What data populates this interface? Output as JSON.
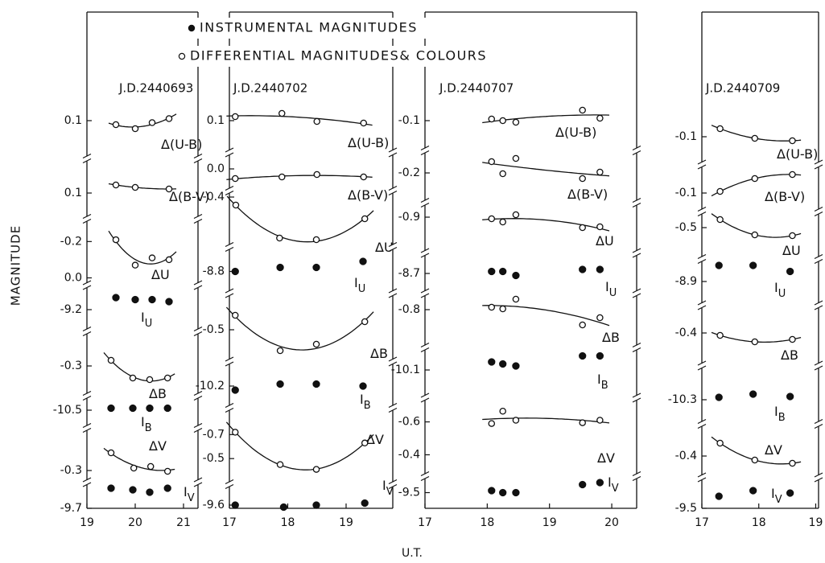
{
  "xlabel": "U.T.",
  "ylabel": "MAGNITUDE",
  "legend": [
    {
      "name": "INSTRUMENTAL MAGNITUDES",
      "marker": "filled"
    },
    {
      "name": "DIFFERENTIAL MAGNITUDES& COLOURS",
      "marker": "open"
    }
  ],
  "chart_data": [
    {
      "type": "scatter",
      "title": "J.D.2440693",
      "xlim": [
        19,
        21.3
      ],
      "xticks": [
        19,
        20,
        21
      ],
      "strips": [
        {
          "label": "Δ(U-B)",
          "marker": "open",
          "ylim": [
            0.05,
            0.18
          ],
          "yticks": [
            0.1
          ],
          "x": [
            19.6,
            20.0,
            20.35,
            20.7
          ],
          "values": [
            0.11,
            0.12,
            0.105,
            0.095
          ]
        },
        {
          "label": "Δ(B-V)",
          "marker": "open",
          "ylim": [
            0.03,
            0.15
          ],
          "yticks": [
            0.1
          ],
          "x": [
            19.6,
            20.0,
            20.7
          ],
          "values": [
            0.08,
            0.086,
            0.09
          ]
        },
        {
          "label": "ΔU",
          "marker": "open",
          "ylim": [
            -0.29,
            0.02
          ],
          "yticks": [
            -0.2,
            {
              "value": 0,
              "label": "0.0"
            }
          ],
          "x": [
            19.6,
            20.0,
            20.35,
            20.7
          ],
          "values": [
            -0.21,
            -0.07,
            -0.11,
            -0.1
          ]
        },
        {
          "label": "I",
          "sub": "U",
          "marker": "filled",
          "ylim": [
            -9.25,
            -9.16
          ],
          "yticks": [
            -9.2
          ],
          "x": [
            19.6,
            20.0,
            20.35,
            20.7
          ],
          "values": [
            -9.23,
            -9.225,
            -9.225,
            -9.22
          ]
        },
        {
          "label": "ΔB",
          "marker": "open",
          "ylim": [
            -0.37,
            -0.23
          ],
          "yticks": [
            -0.3
          ],
          "x": [
            19.5,
            19.95,
            20.3,
            20.67
          ],
          "values": [
            -0.314,
            -0.27,
            -0.266,
            -0.27
          ]
        },
        {
          "label": "I",
          "sub": "B",
          "marker": "filled",
          "ylim": [
            -10.53,
            -10.48
          ],
          "yticks": [
            -10.5
          ],
          "x": [
            19.5,
            19.95,
            20.3,
            20.67
          ],
          "values": [
            -10.505,
            -10.505,
            -10.505,
            -10.505
          ]
        },
        {
          "label": "ΔV",
          "marker": "open",
          "ylim": [
            -0.38,
            -0.27
          ],
          "yticks": [
            -0.3
          ],
          "x": [
            19.5,
            19.97,
            20.32,
            20.67
          ],
          "values": [
            -0.344,
            -0.306,
            -0.31,
            -0.298
          ]
        },
        {
          "label": "I",
          "sub": "V",
          "marker": "filled",
          "ylim": [
            -9.764,
            -9.7
          ],
          "yticks": [
            -9.7
          ],
          "x": [
            19.5,
            19.95,
            20.3,
            20.67
          ],
          "values": [
            -9.75,
            -9.746,
            -9.74,
            -9.75
          ]
        }
      ]
    },
    {
      "type": "scatter",
      "title": "J.D.2440702",
      "xlim": [
        17,
        19.8
      ],
      "xticks": [
        17,
        18,
        19
      ],
      "strips": [
        {
          "label": "Δ(U-B)",
          "marker": "open",
          "ylim": [
            0.05,
            0.17
          ],
          "yticks": [
            0.1
          ],
          "x": [
            17.1,
            17.9,
            18.5,
            19.3
          ],
          "values": [
            0.09,
            0.082,
            0.102,
            0.106
          ]
        },
        {
          "label": "Δ(B-V)",
          "marker": "open",
          "ylim": [
            -0.03,
            0.05
          ],
          "yticks": [
            {
              "value": 0,
              "label": "0.0"
            }
          ],
          "x": [
            17.1,
            17.9,
            18.5,
            19.3
          ],
          "values": [
            0.024,
            0.02,
            0.014,
            0.02
          ]
        },
        {
          "label": "ΔU",
          "marker": "open",
          "ylim": [
            -0.41,
            -0.29
          ],
          "yticks": [
            -0.4
          ],
          "x": [
            17.11,
            17.86,
            18.49,
            19.32
          ],
          "values": [
            -0.38,
            -0.298,
            -0.294,
            -0.346
          ]
        },
        {
          "label": "I",
          "sub": "U",
          "marker": "filled",
          "ylim": [
            -8.845,
            -8.765
          ],
          "yticks": [
            -8.8
          ],
          "x": [
            17.1,
            17.87,
            18.49,
            19.29
          ],
          "values": [
            -8.8,
            -8.81,
            -8.81,
            -8.825
          ]
        },
        {
          "label": "ΔB",
          "marker": "open",
          "ylim": [
            -0.57,
            -0.44
          ],
          "yticks": [
            -0.5
          ],
          "x": [
            17.1,
            17.87,
            18.49,
            19.32
          ],
          "values": [
            -0.536,
            -0.448,
            -0.464,
            -0.52
          ]
        },
        {
          "label": "I",
          "sub": "B",
          "marker": "filled",
          "ylim": [
            -10.24,
            -10.16
          ],
          "yticks": [
            -10.2
          ],
          "x": [
            17.1,
            17.87,
            18.49,
            19.29
          ],
          "values": [
            -10.19,
            -10.205,
            -10.205,
            -10.2
          ]
        },
        {
          "label": "ΔV",
          "marker": "open",
          "ylim": [
            -0.87,
            -0.3
          ],
          "yticks": [
            -0.7,
            -0.5
          ],
          "x": [
            17.1,
            17.87,
            18.49,
            19.32
          ],
          "values": [
            -0.72,
            -0.45,
            -0.41,
            -0.63
          ]
        },
        {
          "label": "I",
          "sub": "V",
          "marker": "filled",
          "ylim": [
            -9.646,
            -9.592
          ],
          "yticks": [
            -9.6
          ],
          "x": [
            17.1,
            17.93,
            18.49,
            19.32
          ],
          "values": [
            -9.6,
            -9.595,
            -9.6,
            -9.605
          ]
        }
      ]
    },
    {
      "type": "scatter",
      "title": "J.D.2440707",
      "xlim": [
        17,
        20.4
      ],
      "xticks": [
        17,
        18,
        19,
        20
      ],
      "strips": [
        {
          "label": "Δ(U-B)",
          "marker": "open",
          "ylim": [
            -0.15,
            -0.03
          ],
          "yticks": [
            -0.1
          ],
          "x": [
            18.07,
            18.25,
            18.46,
            19.53,
            19.81
          ],
          "values": [
            -0.104,
            -0.1,
            -0.096,
            -0.126,
            -0.106
          ]
        },
        {
          "label": "Δ(B-V)",
          "marker": "open",
          "ylim": [
            -0.25,
            -0.13
          ],
          "yticks": [
            -0.2
          ],
          "x": [
            18.07,
            18.25,
            18.46,
            19.53,
            19.81
          ],
          "values": [
            -0.228,
            -0.198,
            -0.236,
            -0.186,
            -0.202
          ]
        },
        {
          "label": "ΔU",
          "marker": "open",
          "ylim": [
            -0.93,
            -0.82
          ],
          "yticks": [
            -0.9
          ],
          "x": [
            18.07,
            18.25,
            18.46,
            19.53,
            19.81
          ],
          "values": [
            -0.896,
            -0.888,
            -0.906,
            -0.874,
            -0.876
          ]
        },
        {
          "label": "I",
          "sub": "U",
          "marker": "filled",
          "ylim": [
            -8.74,
            -8.65
          ],
          "yticks": [
            -8.7
          ],
          "x": [
            18.07,
            18.25,
            18.46,
            19.53,
            19.81
          ],
          "values": [
            -8.705,
            -8.705,
            -8.695,
            -8.71,
            -8.71
          ]
        },
        {
          "label": "ΔB",
          "marker": "open",
          "ylim": [
            -0.84,
            -0.71
          ],
          "yticks": [
            -0.8
          ],
          "x": [
            18.07,
            18.25,
            18.46,
            19.53,
            19.81
          ],
          "values": [
            -0.806,
            -0.802,
            -0.826,
            -0.762,
            -0.78
          ]
        },
        {
          "label": "I",
          "sub": "B",
          "marker": "filled",
          "ylim": [
            -10.15,
            -10.04
          ],
          "yticks": [
            -10.1
          ],
          "x": [
            18.07,
            18.25,
            18.46,
            19.53,
            19.81
          ],
          "values": [
            -10.12,
            -10.115,
            -10.11,
            -10.135,
            -10.135
          ]
        },
        {
          "label": "ΔV",
          "marker": "open",
          "ylim": [
            -0.72,
            -0.28
          ],
          "yticks": [
            -0.6,
            -0.4
          ],
          "x": [
            18.07,
            18.25,
            18.46,
            19.53,
            19.81
          ],
          "values": [
            -0.59,
            -0.665,
            -0.61,
            -0.595,
            -0.61
          ]
        },
        {
          "label": "I",
          "sub": "V",
          "marker": "filled",
          "ylim": [
            -9.535,
            -9.465
          ],
          "yticks": [
            -9.5
          ],
          "x": [
            18.07,
            18.25,
            18.46,
            19.53,
            19.81
          ],
          "values": [
            -9.505,
            -9.5,
            -9.5,
            -9.52,
            -9.525
          ]
        }
      ]
    },
    {
      "type": "scatter",
      "title": "J.D.2440709",
      "xlim": [
        17,
        19.05
      ],
      "xticks": [
        17,
        18,
        19
      ],
      "strips": [
        {
          "label": "Δ(U-B)",
          "marker": "open",
          "ylim": [
            -0.16,
            -0.04
          ],
          "yticks": [
            -0.1
          ],
          "x": [
            17.32,
            17.93,
            18.59
          ],
          "values": [
            -0.12,
            -0.096,
            -0.09
          ]
        },
        {
          "label": "Δ(B-V)",
          "marker": "open",
          "ylim": [
            -0.16,
            -0.056
          ],
          "yticks": [
            -0.1
          ],
          "x": [
            17.32,
            17.93,
            18.59
          ],
          "values": [
            -0.104,
            -0.136,
            -0.146
          ]
        },
        {
          "label": "ΔU",
          "marker": "open",
          "ylim": [
            -0.536,
            -0.426
          ],
          "yticks": [
            -0.5
          ],
          "x": [
            17.32,
            17.93,
            18.59
          ],
          "values": [
            -0.52,
            -0.482,
            -0.48
          ]
        },
        {
          "label": "I",
          "sub": "U",
          "marker": "filled",
          "ylim": [
            -8.95,
            -8.85
          ],
          "yticks": [
            -8.9
          ],
          "x": [
            17.3,
            17.9,
            18.55
          ],
          "values": [
            -8.94,
            -8.94,
            -8.925
          ]
        },
        {
          "label": "ΔB",
          "marker": "open",
          "ylim": [
            -0.458,
            -0.338
          ],
          "yticks": [
            -0.4
          ],
          "x": [
            17.32,
            17.93,
            18.59
          ],
          "values": [
            -0.394,
            -0.378,
            -0.384
          ]
        },
        {
          "label": "I",
          "sub": "B",
          "marker": "filled",
          "ylim": [
            -10.364,
            -10.254
          ],
          "yticks": [
            -10.3
          ],
          "x": [
            17.3,
            17.9,
            18.55
          ],
          "values": [
            -10.306,
            -10.314,
            -10.308
          ]
        },
        {
          "label": "ΔV",
          "marker": "open",
          "ylim": [
            -0.464,
            -0.354
          ],
          "yticks": [
            -0.4
          ],
          "x": [
            17.32,
            17.93,
            18.59
          ],
          "values": [
            -0.432,
            -0.39,
            -0.382
          ]
        },
        {
          "label": "I",
          "sub": "V",
          "marker": "filled",
          "ylim": [
            -9.568,
            -9.496
          ],
          "yticks": [
            -9.5
          ],
          "x": [
            17.3,
            17.9,
            18.55
          ],
          "values": [
            -9.53,
            -9.544,
            -9.538
          ]
        }
      ]
    }
  ]
}
